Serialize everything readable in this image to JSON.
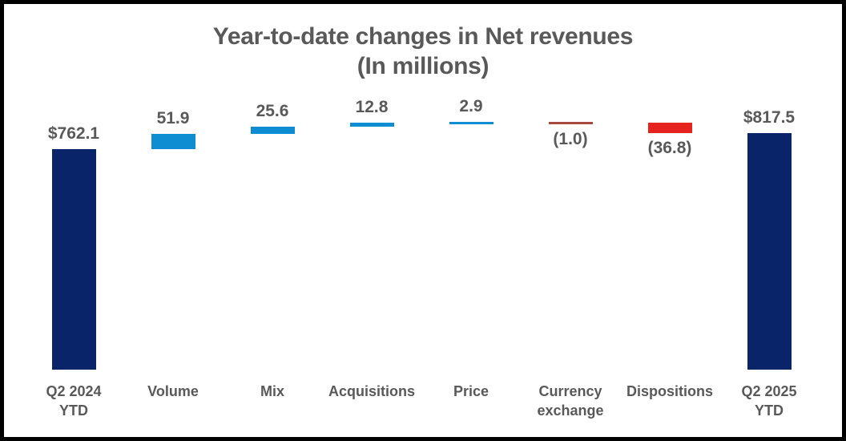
{
  "title": {
    "line1": "Year-to-date changes in Net revenues",
    "line2": "(In millions)"
  },
  "colors": {
    "background": "#FFFFFF",
    "frame_border": "#000000",
    "title_text": "#595959",
    "label_text": "#595959",
    "total_bar_navy": "#0A246A",
    "increase_bar_blue": "#0E8DD2",
    "decrease_bar_red": "#E6231E",
    "decrease_thin_line_red": "#A7493D"
  },
  "chart_data": {
    "type": "bar",
    "subtype": "waterfall",
    "title": "Year-to-date changes in Net revenues",
    "subtitle": "(In millions)",
    "legend": "none",
    "gridlines": false,
    "axes_visible": false,
    "baseline_value": 0,
    "categories": [
      "Q2 2024 YTD",
      "Volume",
      "Mix",
      "Acquisitions",
      "Price",
      "Currency exchange",
      "Dispositions",
      "Q2 2025 YTD"
    ],
    "columns": [
      {
        "category": "Q2 2024 YTD",
        "category_lines": [
          "Q2 2024",
          "YTD"
        ],
        "value": 762.1,
        "value_label": "$762.1",
        "role": "total",
        "label_position": "above",
        "color": "#0A246A"
      },
      {
        "category": "Volume",
        "category_lines": [
          "Volume"
        ],
        "value": 51.9,
        "value_label": "51.9",
        "role": "increase",
        "label_position": "above",
        "color": "#0E8DD2"
      },
      {
        "category": "Mix",
        "category_lines": [
          "Mix"
        ],
        "value": 25.6,
        "value_label": "25.6",
        "role": "increase",
        "label_position": "above",
        "color": "#0E8DD2"
      },
      {
        "category": "Acquisitions",
        "category_lines": [
          "Acquisitions"
        ],
        "value": 12.8,
        "value_label": "12.8",
        "role": "increase",
        "label_position": "above",
        "color": "#0E8DD2"
      },
      {
        "category": "Price",
        "category_lines": [
          "Price"
        ],
        "value": 2.9,
        "value_label": "2.9",
        "role": "increase",
        "label_position": "above",
        "color": "#0E8DD2"
      },
      {
        "category": "Currency exchange",
        "category_lines": [
          "Currency",
          "exchange"
        ],
        "value": -1.0,
        "value_label": "(1.0)",
        "role": "decrease",
        "label_position": "below",
        "color": "#A7493D"
      },
      {
        "category": "Dispositions",
        "category_lines": [
          "Dispositions"
        ],
        "value": -36.8,
        "value_label": "(36.8)",
        "role": "decrease",
        "label_position": "below",
        "color": "#E6231E"
      },
      {
        "category": "Q2 2025 YTD",
        "category_lines": [
          "Q2 2025",
          "YTD"
        ],
        "value": 817.5,
        "value_label": "$817.5",
        "role": "total",
        "label_position": "above",
        "color": "#0A246A"
      }
    ],
    "waterfall_summary": {
      "start_total": 762.1,
      "end_total": 817.5
    }
  }
}
